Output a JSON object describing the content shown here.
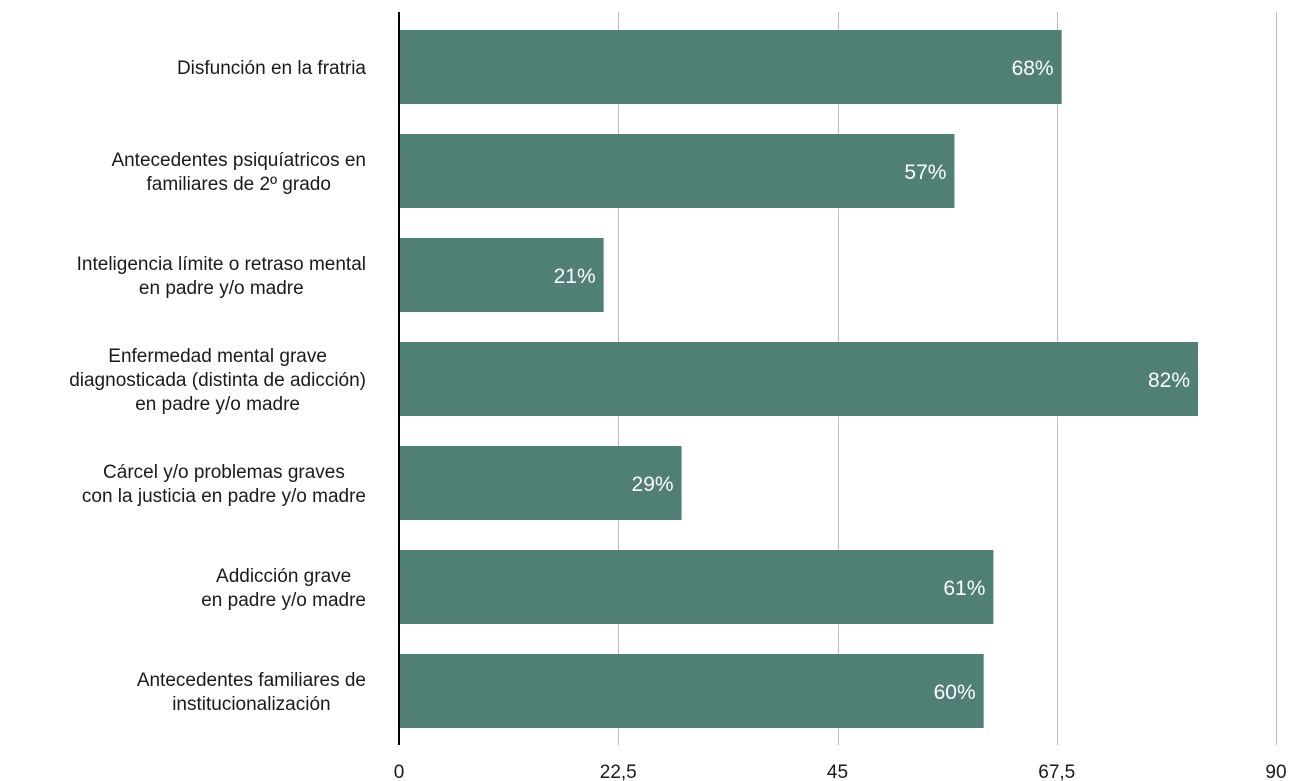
{
  "chart_data": {
    "type": "bar",
    "orientation": "horizontal",
    "categories": [
      [
        "Disfunción en la fratria"
      ],
      [
        "Antecedentes psiquíatricos en",
        "familiares de 2º grado"
      ],
      [
        "Inteligencia límite o retraso mental",
        "en padre y/o madre"
      ],
      [
        "Enfermedad mental grave",
        "diagnosticada (distinta de adicción)",
        "en padre y/o madre"
      ],
      [
        "Cárcel y/o problemas graves",
        "con la justicia en padre y/o madre"
      ],
      [
        "Addicción grave",
        "en padre y/o madre"
      ],
      [
        "Antecedentes familiares de",
        "institucionalización"
      ]
    ],
    "values": [
      68,
      57,
      21,
      82,
      29,
      61,
      60
    ],
    "data_labels": [
      "68%",
      "57%",
      "21%",
      "82%",
      "29%",
      "61%",
      "60%"
    ],
    "xlim": [
      0,
      90
    ],
    "x_ticks": [
      0,
      22.5,
      45,
      67.5,
      90
    ],
    "x_tick_labels": [
      "0",
      "22,5",
      "45",
      "67,5",
      "90"
    ],
    "grid": "vertical",
    "bar_color": "#4f7f75"
  }
}
